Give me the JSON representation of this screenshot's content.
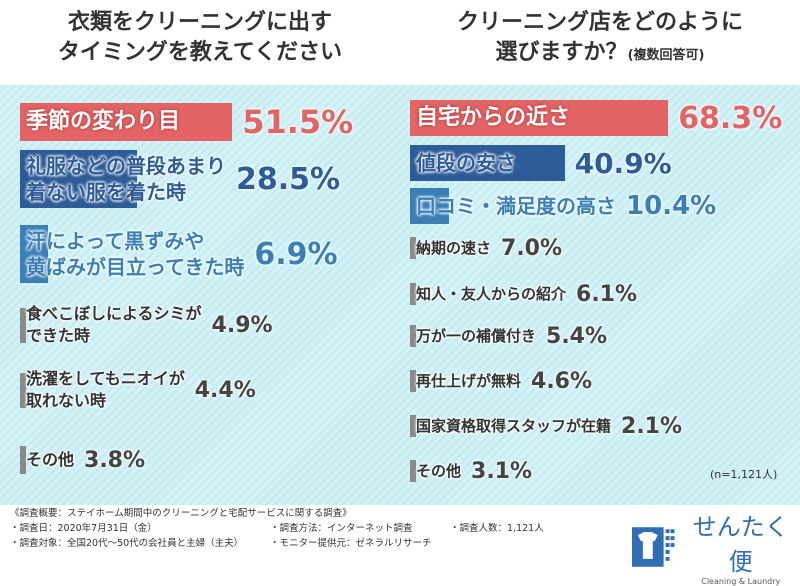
{
  "chart_data": [
    {
      "type": "bar",
      "orientation": "horizontal",
      "title": "衣類をクリーニングに出す\nタイミングを教えてください",
      "subtitle": "",
      "categories": [
        "季節の変わり目",
        "礼服などの普段あまり\n着ない服を着た時",
        "汗によって黒ずみや\n黄ばみが目立ってきた時",
        "食べこぼしによるシミが\nできた時",
        "洗濯をしてもニオイが\n取れない時",
        "その他"
      ],
      "values": [
        51.5,
        28.5,
        6.9,
        4.9,
        4.4,
        3.8
      ],
      "value_labels": [
        "51.5%",
        "28.5%",
        "6.9%",
        "4.9%",
        "4.4%",
        "3.8%"
      ],
      "colors": [
        "#e26464",
        "#2e5c98",
        "#3a7fb6",
        "#8a8a8a",
        "#8a8a8a",
        "#8a8a8a"
      ],
      "unit": "%"
    },
    {
      "type": "bar",
      "orientation": "horizontal",
      "title": "クリーニング店をどのように\n選びますか？",
      "subtitle": "(複数回答可)",
      "categories": [
        "自宅からの近さ",
        "値段の安さ",
        "口コミ・満足度の高さ",
        "納期の速さ",
        "知人・友人からの紹介",
        "万が一の補償付き",
        "再仕上げが無料",
        "国家資格取得スタッフが在籍",
        "その他"
      ],
      "values": [
        68.3,
        40.9,
        10.4,
        7.0,
        6.1,
        5.4,
        4.6,
        2.1,
        3.1
      ],
      "value_labels": [
        "68.3%",
        "40.9%",
        "10.4%",
        "7.0%",
        "6.1%",
        "5.4%",
        "4.6%",
        "2.1%",
        "3.1%"
      ],
      "colors": [
        "#e26464",
        "#2e5c98",
        "#3a7fb6",
        "#8a8a8a",
        "#8a8a8a",
        "#8a8a8a",
        "#8a8a8a",
        "#8a8a8a",
        "#8a8a8a"
      ],
      "unit": "%",
      "annotation": "(n=1,121人)"
    }
  ],
  "footer": {
    "heading": "《調査概要：ステイホーム期間中のクリーニングと宅配サービスに関する調査》",
    "date": "・調査日：2020年7月31日（金）",
    "method": "・調査方法：インターネット調査",
    "count": "・調査人数：1,121人",
    "target": "・調査対象：全国20代〜50代の会社員と主婦（主夫）",
    "provider": "・モニター提供元：ゼネラルリサーチ"
  },
  "logo": {
    "name": "せんたく便",
    "tagline": "Cleaning & Laundry",
    "icon": "shirt-icon",
    "color": "#2f6db5"
  }
}
